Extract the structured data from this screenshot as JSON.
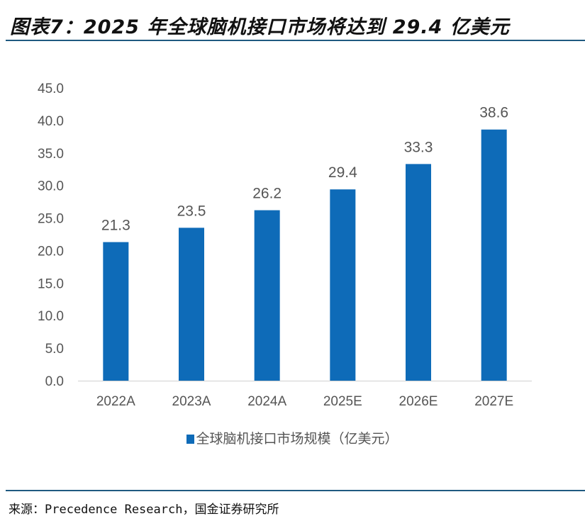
{
  "title": "图表7：2025 年全球脑机接口市场将达到 29.4 亿美元",
  "source": "来源：Precedence Research，国金证券研究所",
  "colors": {
    "bar": "#0e6bb8",
    "rule": "#1f5a80"
  },
  "chart_data": {
    "type": "bar",
    "categories": [
      "2022A",
      "2023A",
      "2024A",
      "2025E",
      "2026E",
      "2027E"
    ],
    "series": [
      {
        "name": "全球脑机接口市场规模（亿美元）",
        "values": [
          21.3,
          23.5,
          26.2,
          29.4,
          33.3,
          38.6
        ]
      }
    ],
    "value_labels": [
      "21.3",
      "23.5",
      "26.2",
      "29.4",
      "33.3",
      "38.6"
    ],
    "ylim": [
      0,
      45
    ],
    "yticks": [
      "0.0",
      "5.0",
      "10.0",
      "15.0",
      "20.0",
      "25.0",
      "30.0",
      "35.0",
      "40.0",
      "45.0"
    ],
    "grid": false,
    "legend": "bottom"
  }
}
